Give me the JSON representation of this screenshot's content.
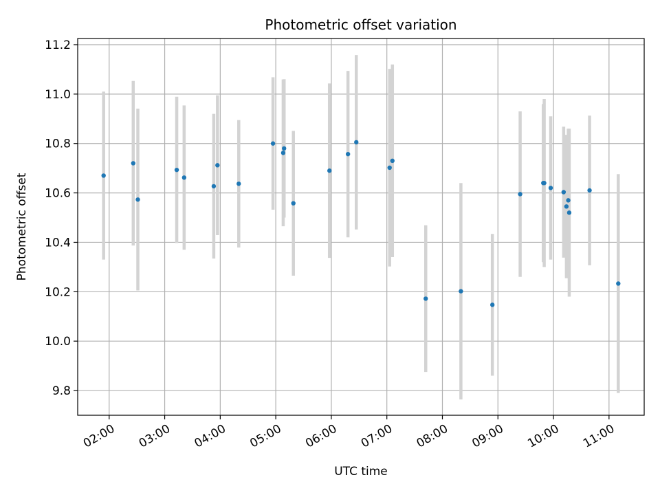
{
  "chart_data": {
    "type": "scatter",
    "title": "Photometric offset variation",
    "xlabel": "UTC time",
    "ylabel": "Photometric offset",
    "x_unit": "UTC time (HH:MM)",
    "xlim": [
      "01:26",
      "11:38"
    ],
    "ylim": [
      9.7,
      11.225
    ],
    "x_ticks": [
      "02:00",
      "03:00",
      "04:00",
      "05:00",
      "06:00",
      "07:00",
      "08:00",
      "09:00",
      "10:00",
      "11:00"
    ],
    "y_ticks": [
      "9.8",
      "10.0",
      "10.2",
      "10.4",
      "10.6",
      "10.8",
      "11.0",
      "11.2"
    ],
    "grid": true,
    "marker_color": "#1f77b4",
    "errorbar_color": "#d3d3d3",
    "points": [
      {
        "t": "01:54",
        "y": 10.67,
        "err": 0.34
      },
      {
        "t": "02:26",
        "y": 10.72,
        "err": 0.333
      },
      {
        "t": "02:31",
        "y": 10.573,
        "err": 0.368
      },
      {
        "t": "03:13",
        "y": 10.693,
        "err": 0.296
      },
      {
        "t": "03:21",
        "y": 10.662,
        "err": 0.292
      },
      {
        "t": "03:53",
        "y": 10.627,
        "err": 0.293
      },
      {
        "t": "03:57",
        "y": 10.712,
        "err": 0.283
      },
      {
        "t": "04:20",
        "y": 10.637,
        "err": 0.258
      },
      {
        "t": "04:57",
        "y": 10.8,
        "err": 0.268
      },
      {
        "t": "05:08",
        "y": 10.762,
        "err": 0.297
      },
      {
        "t": "05:09",
        "y": 10.78,
        "err": 0.28
      },
      {
        "t": "05:19",
        "y": 10.558,
        "err": 0.293
      },
      {
        "t": "05:58",
        "y": 10.69,
        "err": 0.353
      },
      {
        "t": "06:18",
        "y": 10.757,
        "err": 0.337
      },
      {
        "t": "06:27",
        "y": 10.805,
        "err": 0.353
      },
      {
        "t": "07:03",
        "y": 10.702,
        "err": 0.4
      },
      {
        "t": "07:06",
        "y": 10.73,
        "err": 0.39
      },
      {
        "t": "07:42",
        "y": 10.172,
        "err": 0.297
      },
      {
        "t": "08:20",
        "y": 10.202,
        "err": 0.438
      },
      {
        "t": "08:54",
        "y": 10.147,
        "err": 0.287
      },
      {
        "t": "09:24",
        "y": 10.595,
        "err": 0.335
      },
      {
        "t": "09:49",
        "y": 10.64,
        "err": 0.32
      },
      {
        "t": "09:50",
        "y": 10.64,
        "err": 0.34
      },
      {
        "t": "09:57",
        "y": 10.62,
        "err": 0.29
      },
      {
        "t": "10:11",
        "y": 10.603,
        "err": 0.265
      },
      {
        "t": "10:14",
        "y": 10.545,
        "err": 0.29
      },
      {
        "t": "10:16",
        "y": 10.57,
        "err": 0.29
      },
      {
        "t": "10:17",
        "y": 10.52,
        "err": 0.34
      },
      {
        "t": "10:39",
        "y": 10.61,
        "err": 0.303
      },
      {
        "t": "11:10",
        "y": 10.233,
        "err": 0.443
      }
    ]
  }
}
